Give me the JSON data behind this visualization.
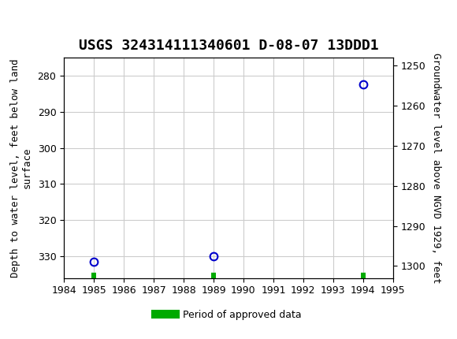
{
  "title": "USGS 324314111340601 D-08-07 13DDD1",
  "ylabel_left": "Depth to water level, feet below land\nsurface",
  "ylabel_right": "Groundwater level above NGVD 1929, feet",
  "xlim": [
    1984,
    1995
  ],
  "ylim_left": [
    275,
    336
  ],
  "ylim_right": [
    1248,
    1303
  ],
  "xticks": [
    1984,
    1985,
    1986,
    1987,
    1988,
    1989,
    1990,
    1991,
    1992,
    1993,
    1994,
    1995
  ],
  "yticks_left": [
    280,
    290,
    300,
    310,
    320,
    330
  ],
  "yticks_right": [
    1300,
    1290,
    1280,
    1270,
    1260,
    1250
  ],
  "data_points": [
    {
      "x": 1985.0,
      "y_left": 331.5
    },
    {
      "x": 1989.0,
      "y_left": 330.0
    },
    {
      "x": 1994.0,
      "y_left": 282.5
    }
  ],
  "period_bars": [
    {
      "x": 1985.0
    },
    {
      "x": 1989.0
    },
    {
      "x": 1994.0
    }
  ],
  "point_color": "#0000cc",
  "period_color": "#00aa00",
  "grid_color": "#cccccc",
  "bg_color": "#ffffff",
  "header_color": "#006633",
  "title_fontsize": 13,
  "axis_label_fontsize": 9,
  "tick_fontsize": 9,
  "legend_label": "Period of approved data"
}
